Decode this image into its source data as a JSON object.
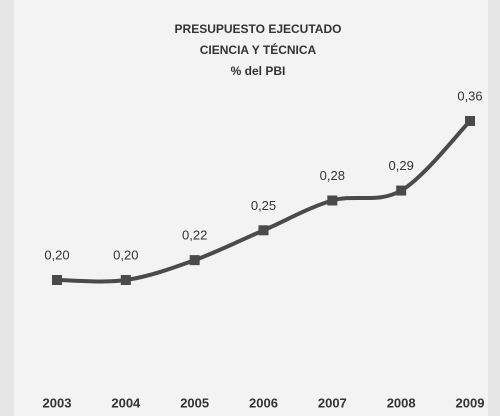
{
  "chart_data": {
    "type": "line",
    "title": [
      "PRESUPUESTO EJECUTADO",
      "CIENCIA Y TÉCNICA",
      "% del PBI"
    ],
    "categories": [
      "2003",
      "2004",
      "2005",
      "2006",
      "2007",
      "2008",
      "2009"
    ],
    "series": [
      {
        "color": "#4a4a4a",
        "values": [
          0.2,
          0.2,
          0.22,
          0.25,
          0.28,
          0.29,
          0.36
        ],
        "value_labels": [
          "0,20",
          "0,20",
          "0,22",
          "0,25",
          "0,28",
          "0,29",
          "0,36"
        ]
      }
    ]
  }
}
